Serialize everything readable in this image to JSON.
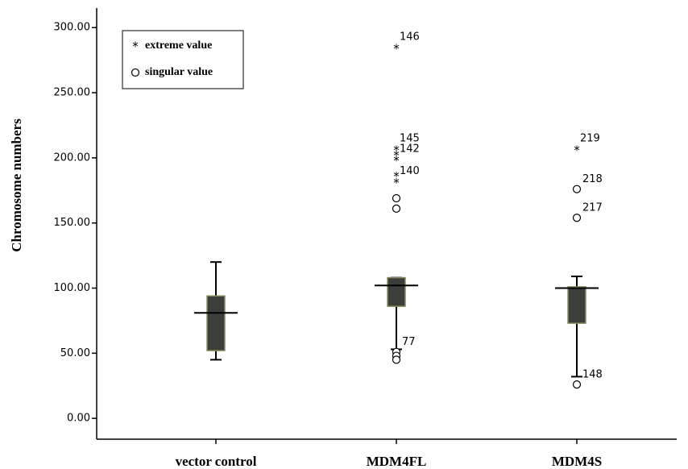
{
  "chart_data": {
    "type": "box",
    "y_label": "Chromosome numbers",
    "categories": [
      "vector control",
      "MDM4FL",
      "MDM4S"
    ],
    "boxes": [
      {
        "whislo": 45,
        "q1": 52,
        "med": 81,
        "q3": 94,
        "whishi": 120,
        "outliers": [],
        "extremes": []
      },
      {
        "whislo": 53,
        "q1": 86,
        "med": 102,
        "q3": 108,
        "whishi": 108,
        "outliers": [
          {
            "value": 51,
            "label": "77"
          },
          {
            "value": 48
          },
          {
            "value": 45
          },
          {
            "value": 169
          },
          {
            "value": 161
          }
        ],
        "extremes": [
          {
            "value": 284,
            "label": "146"
          },
          {
            "value": 206,
            "label": "145"
          },
          {
            "value": 202
          },
          {
            "value": 198,
            "label": "142"
          },
          {
            "value": 186
          },
          {
            "value": 181,
            "label": "140"
          }
        ]
      },
      {
        "whislo": 32,
        "q1": 73,
        "med": 100,
        "q3": 101,
        "whishi": 109,
        "outliers": [
          {
            "value": 26,
            "label": "148"
          },
          {
            "value": 176,
            "label": "218"
          },
          {
            "value": 154,
            "label": "217"
          }
        ],
        "extremes": [
          {
            "value": 206,
            "label": "219"
          }
        ]
      }
    ],
    "box_color": "#3b3f3b",
    "ylim": [
      -16,
      315
    ],
    "yticks": [
      {
        "value": 0,
        "label": "0.00"
      },
      {
        "value": 50,
        "label": "50.00"
      },
      {
        "value": 100,
        "label": "100.00"
      },
      {
        "value": 150,
        "label": "150.00"
      },
      {
        "value": 200,
        "label": "200.00"
      },
      {
        "value": 250,
        "label": "250.00"
      },
      {
        "value": 300,
        "label": "300.00"
      }
    ],
    "legend": {
      "extreme": "extreme value",
      "outlier": "singular value",
      "position": "upper left"
    }
  }
}
